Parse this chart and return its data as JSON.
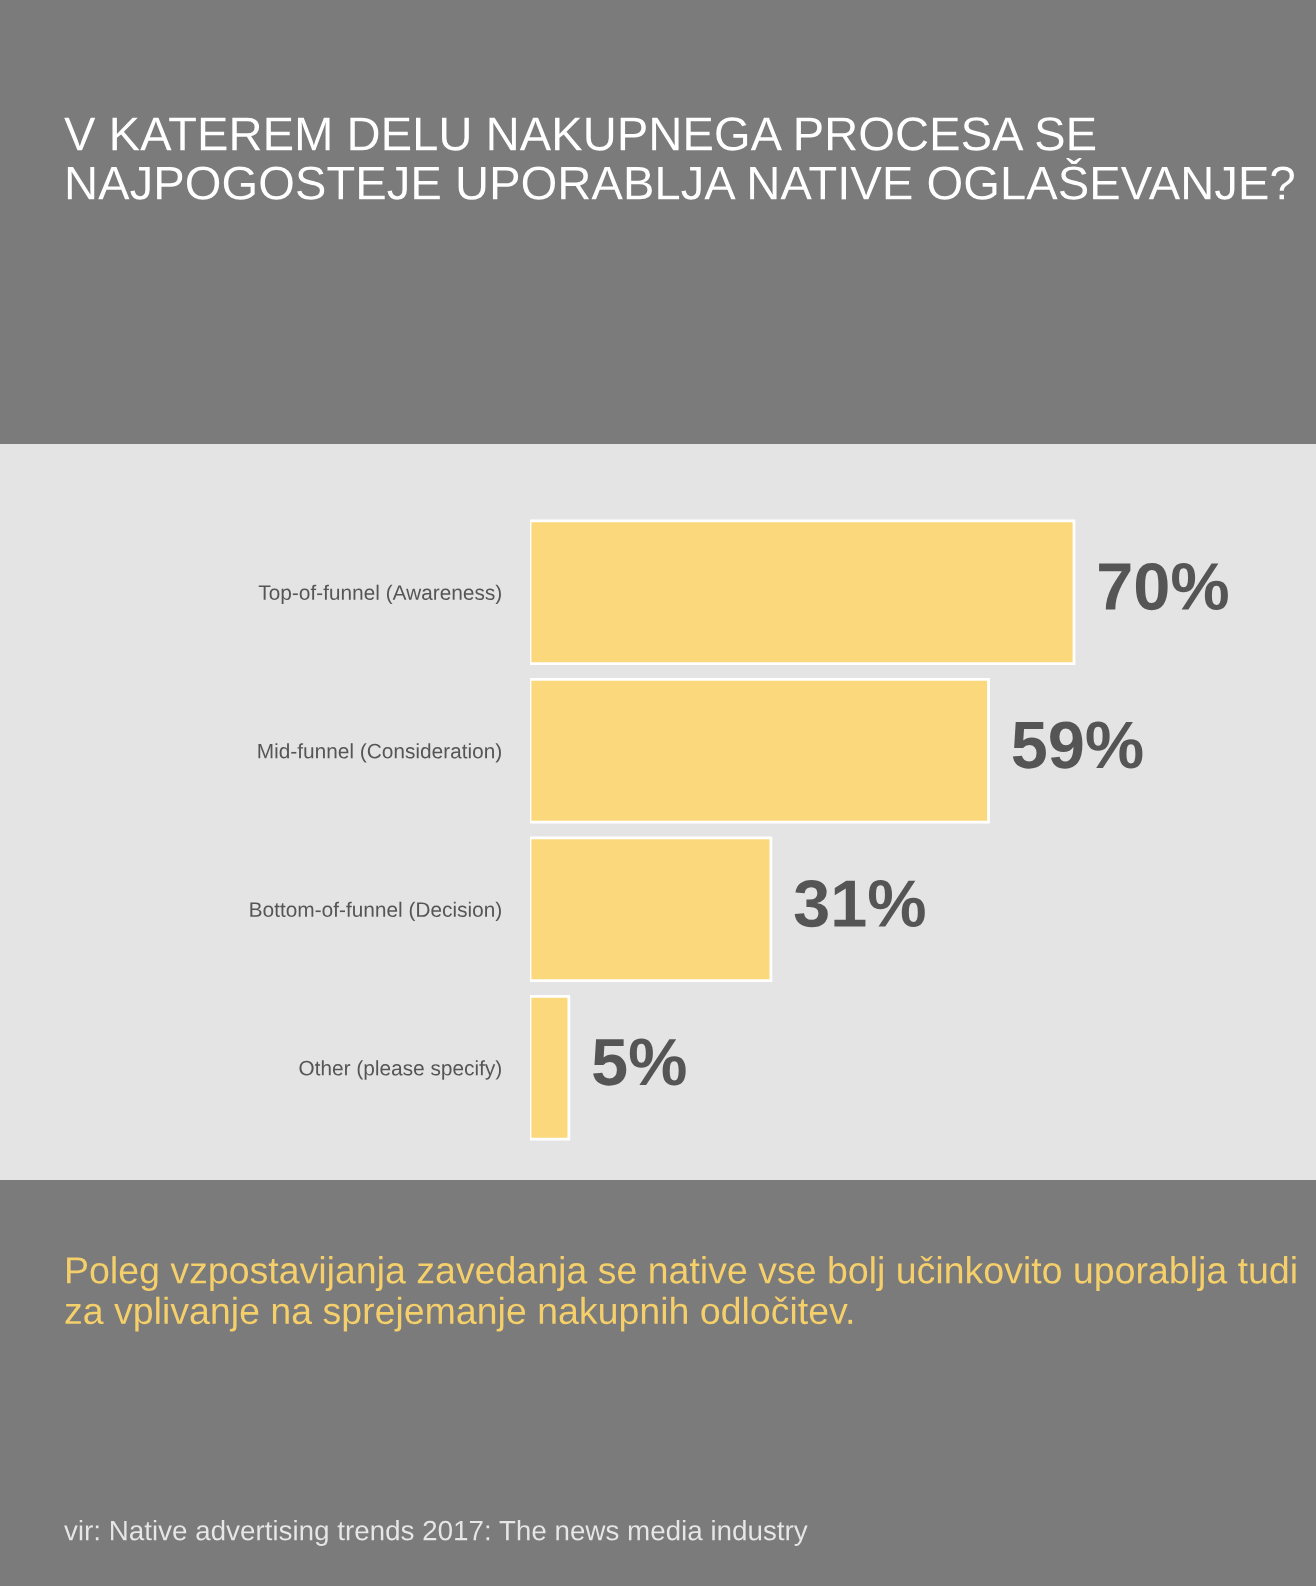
{
  "chart_data": {
    "type": "bar",
    "orientation": "horizontal",
    "title": "V KATEREM DELU NAKUPNEGA PROCESA SE NAJPOGOSTEJE UPORABLJA NATIVE OGLAŠEVANJE?",
    "categories": [
      "Top-of-funnel (Awareness)",
      "Mid-funnel (Consideration)",
      "Bottom-of-funnel (Decision)",
      "Other (please specify)"
    ],
    "values": [
      70,
      59,
      31,
      5
    ],
    "color": "#fcd87c",
    "data_labels": true,
    "value_labels": [
      "70%",
      "59%",
      "31%",
      "5%"
    ],
    "annotations": [
      "Poleg vzpostavijanja zavedanja se native vse bolj učinkovito uporablja tudi za vplivanje na sprejemanje nakupnih odločitev.",
      "vir: Native advertising trends 2017: The news media industry"
    ],
    "grid": false,
    "legend": false
  }
}
